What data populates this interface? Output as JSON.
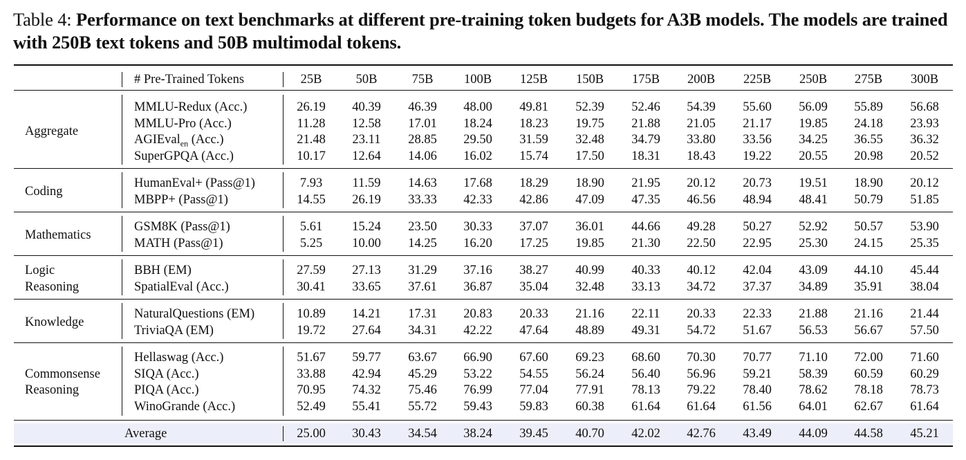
{
  "caption": {
    "label": "Table 4:",
    "text": "Performance on text benchmarks at different pre-training token budgets for A3B models. The models are trained with 250B text tokens and 50B multimodal tokens."
  },
  "table": {
    "header": {
      "stub": "# Pre-Trained Tokens",
      "columns": [
        "25B",
        "50B",
        "75B",
        "100B",
        "125B",
        "150B",
        "175B",
        "200B",
        "225B",
        "250B",
        "275B",
        "300B"
      ]
    },
    "groups": [
      {
        "category": [
          "Aggregate"
        ],
        "rows": [
          {
            "benchmark": "MMLU-Redux (Acc.)",
            "values": [
              "26.19",
              "40.39",
              "46.39",
              "48.00",
              "49.81",
              "52.39",
              "52.46",
              "54.39",
              "55.60",
              "56.09",
              "55.89",
              "56.68"
            ]
          },
          {
            "benchmark": "MMLU-Pro (Acc.)",
            "values": [
              "11.28",
              "12.58",
              "17.01",
              "18.24",
              "18.23",
              "19.75",
              "21.88",
              "21.05",
              "21.17",
              "19.85",
              "24.18",
              "23.93"
            ]
          },
          {
            "benchmark": "AGIEval",
            "benchmark_sub": "en",
            "benchmark_suffix": " (Acc.)",
            "values": [
              "21.48",
              "23.11",
              "28.85",
              "29.50",
              "31.59",
              "32.48",
              "34.79",
              "33.80",
              "33.56",
              "34.25",
              "36.55",
              "36.32"
            ]
          },
          {
            "benchmark": "SuperGPQA (Acc.)",
            "values": [
              "10.17",
              "12.64",
              "14.06",
              "16.02",
              "15.74",
              "17.50",
              "18.31",
              "18.43",
              "19.22",
              "20.55",
              "20.98",
              "20.52"
            ]
          }
        ]
      },
      {
        "category": [
          "Coding"
        ],
        "rows": [
          {
            "benchmark": "HumanEval+ (Pass@1)",
            "values": [
              "7.93",
              "11.59",
              "14.63",
              "17.68",
              "18.29",
              "18.90",
              "21.95",
              "20.12",
              "20.73",
              "19.51",
              "18.90",
              "20.12"
            ]
          },
          {
            "benchmark": "MBPP+ (Pass@1)",
            "values": [
              "14.55",
              "26.19",
              "33.33",
              "42.33",
              "42.86",
              "47.09",
              "47.35",
              "46.56",
              "48.94",
              "48.41",
              "50.79",
              "51.85"
            ]
          }
        ]
      },
      {
        "category": [
          "Mathematics"
        ],
        "rows": [
          {
            "benchmark": "GSM8K (Pass@1)",
            "values": [
              "5.61",
              "15.24",
              "23.50",
              "30.33",
              "37.07",
              "36.01",
              "44.66",
              "49.28",
              "50.27",
              "52.92",
              "50.57",
              "53.90"
            ]
          },
          {
            "benchmark": "MATH (Pass@1)",
            "values": [
              "5.25",
              "10.00",
              "14.25",
              "16.20",
              "17.25",
              "19.85",
              "21.30",
              "22.50",
              "22.95",
              "25.30",
              "24.15",
              "25.35"
            ]
          }
        ]
      },
      {
        "category": [
          "Logic",
          "Reasoning"
        ],
        "rows": [
          {
            "benchmark": "BBH (EM)",
            "values": [
              "27.59",
              "27.13",
              "31.29",
              "37.16",
              "38.27",
              "40.99",
              "40.33",
              "40.12",
              "42.04",
              "43.09",
              "44.10",
              "45.44"
            ]
          },
          {
            "benchmark": "SpatialEval (Acc.)",
            "values": [
              "30.41",
              "33.65",
              "37.61",
              "36.87",
              "35.04",
              "32.48",
              "33.13",
              "34.72",
              "37.37",
              "34.89",
              "35.91",
              "38.04"
            ]
          }
        ]
      },
      {
        "category": [
          "Knowledge"
        ],
        "rows": [
          {
            "benchmark": "NaturalQuestions (EM)",
            "values": [
              "10.89",
              "14.21",
              "17.31",
              "20.83",
              "20.33",
              "21.16",
              "22.11",
              "20.33",
              "22.33",
              "21.88",
              "21.16",
              "21.44"
            ]
          },
          {
            "benchmark": "TriviaQA (EM)",
            "values": [
              "19.72",
              "27.64",
              "34.31",
              "42.22",
              "47.64",
              "48.89",
              "49.31",
              "54.72",
              "51.67",
              "56.53",
              "56.67",
              "57.50"
            ]
          }
        ]
      },
      {
        "category": [
          "Commonsense",
          "Reasoning"
        ],
        "rows": [
          {
            "benchmark": "Hellaswag (Acc.)",
            "values": [
              "51.67",
              "59.77",
              "63.67",
              "66.90",
              "67.60",
              "69.23",
              "68.60",
              "70.30",
              "70.77",
              "71.10",
              "72.00",
              "71.60"
            ]
          },
          {
            "benchmark": "SIQA (Acc.)",
            "values": [
              "33.88",
              "42.94",
              "45.29",
              "53.22",
              "54.55",
              "56.24",
              "56.40",
              "56.96",
              "59.21",
              "58.39",
              "60.59",
              "60.29"
            ]
          },
          {
            "benchmark": "PIQA (Acc.)",
            "values": [
              "70.95",
              "74.32",
              "75.46",
              "76.99",
              "77.04",
              "77.91",
              "78.13",
              "79.22",
              "78.40",
              "78.62",
              "78.18",
              "78.73"
            ]
          },
          {
            "benchmark": "WinoGrande (Acc.)",
            "values": [
              "52.49",
              "55.41",
              "55.72",
              "59.43",
              "59.83",
              "60.38",
              "61.64",
              "61.64",
              "61.56",
              "64.01",
              "62.67",
              "61.64"
            ]
          }
        ]
      }
    ],
    "average": {
      "label": "Average",
      "values": [
        "25.00",
        "30.43",
        "34.54",
        "38.24",
        "39.45",
        "40.70",
        "42.02",
        "42.76",
        "43.49",
        "44.09",
        "44.58",
        "45.21"
      ]
    },
    "colors": {
      "average_band": "#eceef9"
    }
  }
}
